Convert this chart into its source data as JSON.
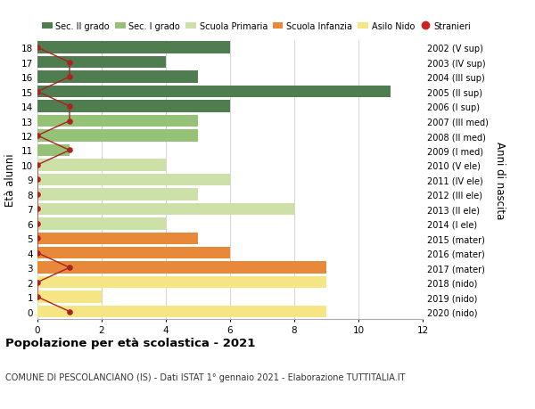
{
  "ages": [
    0,
    1,
    2,
    3,
    4,
    5,
    6,
    7,
    8,
    9,
    10,
    11,
    12,
    13,
    14,
    15,
    16,
    17,
    18
  ],
  "years": [
    "2020 (nido)",
    "2019 (nido)",
    "2018 (nido)",
    "2017 (mater)",
    "2016 (mater)",
    "2015 (mater)",
    "2014 (I ele)",
    "2013 (II ele)",
    "2012 (III ele)",
    "2011 (IV ele)",
    "2010 (V ele)",
    "2009 (I med)",
    "2008 (II med)",
    "2007 (III med)",
    "2006 (I sup)",
    "2005 (II sup)",
    "2004 (III sup)",
    "2003 (IV sup)",
    "2002 (V sup)"
  ],
  "bar_values": [
    9,
    2,
    9,
    9,
    6,
    5,
    4,
    8,
    5,
    6,
    4,
    1,
    5,
    5,
    6,
    11,
    5,
    4,
    6
  ],
  "bar_colors": [
    "#f5e585",
    "#f5e585",
    "#f5e585",
    "#e8893a",
    "#e8893a",
    "#e8893a",
    "#cde0a8",
    "#cde0a8",
    "#cde0a8",
    "#cde0a8",
    "#cde0a8",
    "#96c278",
    "#96c278",
    "#96c278",
    "#4f7d4f",
    "#4f7d4f",
    "#4f7d4f",
    "#4f7d4f",
    "#4f7d4f"
  ],
  "stranieri_values": [
    1,
    0,
    0,
    1,
    0,
    0,
    0,
    0,
    0,
    0,
    0,
    1,
    0,
    1,
    1,
    0,
    1,
    1,
    0
  ],
  "legend_labels": [
    "Sec. II grado",
    "Sec. I grado",
    "Scuola Primaria",
    "Scuola Infanzia",
    "Asilo Nido",
    "Stranieri"
  ],
  "legend_colors": [
    "#4f7d4f",
    "#96c278",
    "#cde0a8",
    "#e8893a",
    "#f5e585",
    "#cc2222"
  ],
  "title": "Popolazione per età scolastica - 2021",
  "subtitle": "COMUNE DI PESCOLANCIANO (IS) - Dati ISTAT 1° gennaio 2021 - Elaborazione TUTTITALIA.IT",
  "ylabel_left": "Età alunni",
  "ylabel_right": "Anni di nascita",
  "xlim": [
    0,
    12
  ],
  "background_color": "#ffffff",
  "grid_color": "#cccccc"
}
